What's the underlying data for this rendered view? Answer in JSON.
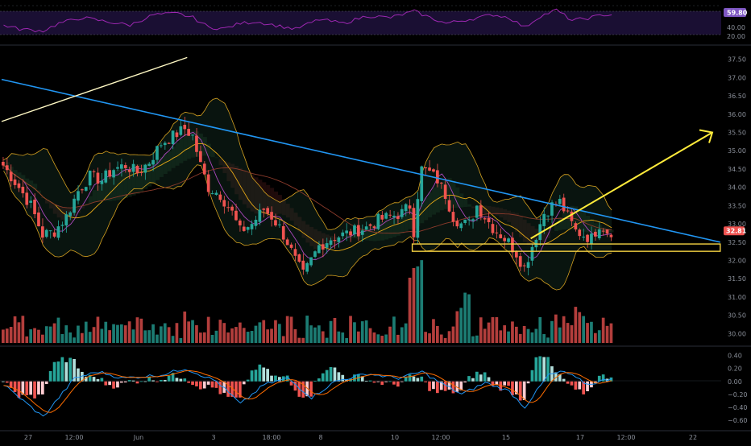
{
  "colors": {
    "background": "#000000",
    "up": "#26a69a",
    "down": "#ef5350",
    "rsi": "#9c27b0",
    "rsi_tag_bg": "#7e57c2",
    "trendline": "#2196f3",
    "arrow": "#ffeb3b",
    "support_zone": "#f5d142",
    "bollinger": "#d4a020",
    "macd_line": "#2196f3",
    "signal_line": "#ff6d00",
    "price_tag_bg": "#ef5350",
    "axis_text": "#8a8f99",
    "divider": "#2a2e39"
  },
  "rsi_panel": {
    "current_value_label": "59.80",
    "ticks": [
      "40.00",
      "20.00"
    ],
    "levels": [
      70,
      30
    ]
  },
  "price_panel": {
    "ticks": [
      "37.50",
      "37.00",
      "36.50",
      "36.00",
      "35.50",
      "35.00",
      "34.50",
      "34.00",
      "33.50",
      "33.00",
      "32.50",
      "32.00",
      "31.50",
      "31.00",
      "30.50",
      "30.00"
    ],
    "last_price_label": "32.81",
    "last_price": 32.81,
    "ylim": [
      29.7,
      37.8
    ]
  },
  "macd_panel": {
    "ticks": [
      "0.40",
      "0.20",
      "0.00",
      "−0.20",
      "−0.40",
      "−0.60"
    ],
    "ylim": [
      -0.7,
      0.47
    ]
  },
  "time_axis": {
    "labels": [
      "27",
      "12:00",
      "Jun",
      "3",
      "18:00",
      "8",
      "10",
      "12:00",
      "15",
      "17",
      "12:00",
      "22"
    ]
  },
  "chart_data": {
    "type": "candlestick",
    "title": "",
    "anchors_price": [
      [
        0,
        34.6
      ],
      [
        4,
        34.0
      ],
      [
        7,
        33.5
      ],
      [
        10,
        32.7
      ],
      [
        13,
        32.8
      ],
      [
        16,
        33.2
      ],
      [
        19,
        33.9
      ],
      [
        22,
        34.3
      ],
      [
        25,
        34.2
      ],
      [
        28,
        34.5
      ],
      [
        31,
        34.6
      ],
      [
        34,
        34.4
      ],
      [
        37,
        34.7
      ],
      [
        40,
        35.2
      ],
      [
        43,
        35.4
      ],
      [
        46,
        35.6
      ],
      [
        48,
        35.4
      ],
      [
        50,
        34.6
      ],
      [
        52,
        34.0
      ],
      [
        55,
        33.8
      ],
      [
        58,
        33.3
      ],
      [
        60,
        32.8
      ],
      [
        63,
        33.0
      ],
      [
        66,
        33.4
      ],
      [
        68,
        33.2
      ],
      [
        70,
        32.9
      ],
      [
        72,
        32.5
      ],
      [
        74,
        32.0
      ],
      [
        76,
        31.6
      ],
      [
        78,
        32.0
      ],
      [
        80,
        32.4
      ],
      [
        83,
        32.6
      ],
      [
        86,
        32.7
      ],
      [
        89,
        32.8
      ],
      [
        92,
        32.9
      ],
      [
        95,
        33.1
      ],
      [
        98,
        33.2
      ],
      [
        101,
        33.3
      ],
      [
        103,
        33.5
      ],
      [
        104,
        32.8
      ],
      [
        105,
        33.8
      ],
      [
        106,
        34.5
      ],
      [
        108,
        34.4
      ],
      [
        110,
        34.2
      ],
      [
        112,
        33.8
      ],
      [
        114,
        33.2
      ],
      [
        116,
        33.0
      ],
      [
        118,
        33.0
      ],
      [
        120,
        33.5
      ],
      [
        122,
        33.2
      ],
      [
        124,
        32.9
      ],
      [
        126,
        32.7
      ],
      [
        128,
        32.5
      ],
      [
        130,
        32.2
      ],
      [
        132,
        31.8
      ],
      [
        133,
        32.1
      ],
      [
        135,
        32.7
      ],
      [
        137,
        33.3
      ],
      [
        139,
        33.5
      ],
      [
        141,
        33.6
      ],
      [
        143,
        33.2
      ],
      [
        145,
        32.8
      ],
      [
        147,
        32.7
      ],
      [
        149,
        32.6
      ],
      [
        151,
        33.0
      ],
      [
        153,
        32.8
      ],
      [
        154,
        32.8
      ]
    ],
    "macd_anchors": [
      [
        0,
        -0.05
      ],
      [
        10,
        -0.55
      ],
      [
        18,
        0.05
      ],
      [
        24,
        0.15
      ],
      [
        30,
        0.05
      ],
      [
        40,
        0.1
      ],
      [
        46,
        0.2
      ],
      [
        54,
        0.0
      ],
      [
        60,
        -0.35
      ],
      [
        66,
        -0.05
      ],
      [
        72,
        0.05
      ],
      [
        78,
        -0.25
      ],
      [
        84,
        0.0
      ],
      [
        92,
        0.12
      ],
      [
        100,
        0.05
      ],
      [
        106,
        0.15
      ],
      [
        110,
        0.0
      ],
      [
        116,
        -0.2
      ],
      [
        122,
        -0.02
      ],
      [
        128,
        -0.15
      ],
      [
        132,
        -0.4
      ],
      [
        138,
        0.1
      ],
      [
        142,
        0.15
      ],
      [
        148,
        -0.05
      ],
      [
        154,
        0.05
      ]
    ],
    "rsi_anchors": [
      [
        0,
        42
      ],
      [
        4,
        35
      ],
      [
        10,
        32
      ],
      [
        14,
        45
      ],
      [
        20,
        55
      ],
      [
        26,
        48
      ],
      [
        32,
        42
      ],
      [
        38,
        60
      ],
      [
        44,
        62
      ],
      [
        48,
        55
      ],
      [
        52,
        38
      ],
      [
        56,
        36
      ],
      [
        60,
        45
      ],
      [
        64,
        48
      ],
      [
        70,
        40
      ],
      [
        74,
        35
      ],
      [
        80,
        52
      ],
      [
        86,
        45
      ],
      [
        92,
        58
      ],
      [
        98,
        55
      ],
      [
        104,
        66
      ],
      [
        108,
        55
      ],
      [
        112,
        45
      ],
      [
        118,
        52
      ],
      [
        124,
        60
      ],
      [
        128,
        55
      ],
      [
        132,
        38
      ],
      [
        136,
        58
      ],
      [
        140,
        68
      ],
      [
        144,
        50
      ],
      [
        148,
        54
      ],
      [
        152,
        60
      ],
      [
        154,
        59.8
      ]
    ],
    "trendline": {
      "from": [
        0,
        36.95
      ],
      "to": [
        182,
        32.5
      ]
    },
    "support_zone": {
      "low": 32.25,
      "high": 32.45,
      "from_bar": 104,
      "to_bar": 182
    },
    "yellow_arrow": {
      "from": [
        134,
        32.6
      ],
      "to": [
        180,
        35.5
      ]
    },
    "white_line": {
      "from": [
        0,
        35.8
      ],
      "to": [
        47,
        37.55
      ]
    }
  }
}
